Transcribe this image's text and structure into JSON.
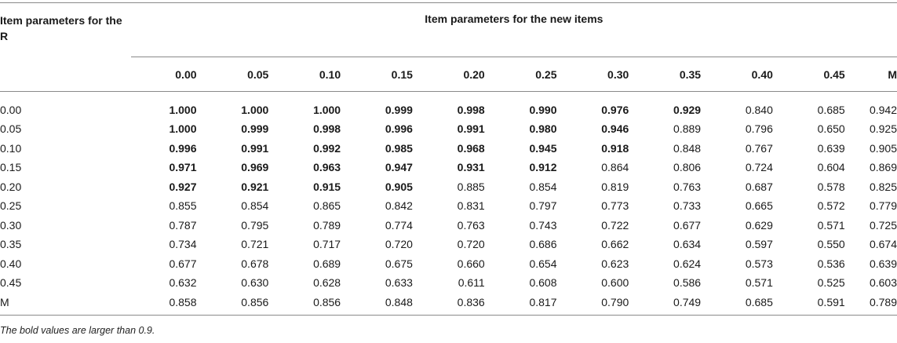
{
  "table": {
    "stub_header": "Item parameters for the R",
    "span_header": "Item parameters for the new items",
    "columns": [
      "0.00",
      "0.05",
      "0.10",
      "0.15",
      "0.20",
      "0.25",
      "0.30",
      "0.35",
      "0.40",
      "0.45",
      "M"
    ],
    "rows": [
      {
        "label": "0.00",
        "values": [
          "1.000",
          "1.000",
          "1.000",
          "0.999",
          "0.998",
          "0.990",
          "0.976",
          "0.929",
          "0.840",
          "0.685",
          "0.942"
        ]
      },
      {
        "label": "0.05",
        "values": [
          "1.000",
          "0.999",
          "0.998",
          "0.996",
          "0.991",
          "0.980",
          "0.946",
          "0.889",
          "0.796",
          "0.650",
          "0.925"
        ]
      },
      {
        "label": "0.10",
        "values": [
          "0.996",
          "0.991",
          "0.992",
          "0.985",
          "0.968",
          "0.945",
          "0.918",
          "0.848",
          "0.767",
          "0.639",
          "0.905"
        ]
      },
      {
        "label": "0.15",
        "values": [
          "0.971",
          "0.969",
          "0.963",
          "0.947",
          "0.931",
          "0.912",
          "0.864",
          "0.806",
          "0.724",
          "0.604",
          "0.869"
        ]
      },
      {
        "label": "0.20",
        "values": [
          "0.927",
          "0.921",
          "0.915",
          "0.905",
          "0.885",
          "0.854",
          "0.819",
          "0.763",
          "0.687",
          "0.578",
          "0.825"
        ]
      },
      {
        "label": "0.25",
        "values": [
          "0.855",
          "0.854",
          "0.865",
          "0.842",
          "0.831",
          "0.797",
          "0.773",
          "0.733",
          "0.665",
          "0.572",
          "0.779"
        ]
      },
      {
        "label": "0.30",
        "values": [
          "0.787",
          "0.795",
          "0.789",
          "0.774",
          "0.763",
          "0.743",
          "0.722",
          "0.677",
          "0.629",
          "0.571",
          "0.725"
        ]
      },
      {
        "label": "0.35",
        "values": [
          "0.734",
          "0.721",
          "0.717",
          "0.720",
          "0.720",
          "0.686",
          "0.662",
          "0.634",
          "0.597",
          "0.550",
          "0.674"
        ]
      },
      {
        "label": "0.40",
        "values": [
          "0.677",
          "0.678",
          "0.689",
          "0.675",
          "0.660",
          "0.654",
          "0.623",
          "0.624",
          "0.573",
          "0.536",
          "0.639"
        ]
      },
      {
        "label": "0.45",
        "values": [
          "0.632",
          "0.630",
          "0.628",
          "0.633",
          "0.611",
          "0.608",
          "0.600",
          "0.586",
          "0.571",
          "0.525",
          "0.603"
        ]
      },
      {
        "label": "M",
        "values": [
          "0.858",
          "0.856",
          "0.856",
          "0.848",
          "0.836",
          "0.817",
          "0.790",
          "0.749",
          "0.685",
          "0.591",
          "0.789"
        ]
      }
    ],
    "bold_cells": [
      [
        0,
        0
      ],
      [
        0,
        1
      ],
      [
        0,
        2
      ],
      [
        0,
        3
      ],
      [
        0,
        4
      ],
      [
        0,
        5
      ],
      [
        0,
        6
      ],
      [
        0,
        7
      ],
      [
        1,
        0
      ],
      [
        1,
        1
      ],
      [
        1,
        2
      ],
      [
        1,
        3
      ],
      [
        1,
        4
      ],
      [
        1,
        5
      ],
      [
        1,
        6
      ],
      [
        2,
        0
      ],
      [
        2,
        1
      ],
      [
        2,
        2
      ],
      [
        2,
        3
      ],
      [
        2,
        4
      ],
      [
        2,
        5
      ],
      [
        2,
        6
      ],
      [
        3,
        0
      ],
      [
        3,
        1
      ],
      [
        3,
        2
      ],
      [
        3,
        3
      ],
      [
        3,
        4
      ],
      [
        3,
        5
      ],
      [
        4,
        0
      ],
      [
        4,
        1
      ],
      [
        4,
        2
      ],
      [
        4,
        3
      ]
    ],
    "footnote": "The bold values are larger than 0.9."
  }
}
